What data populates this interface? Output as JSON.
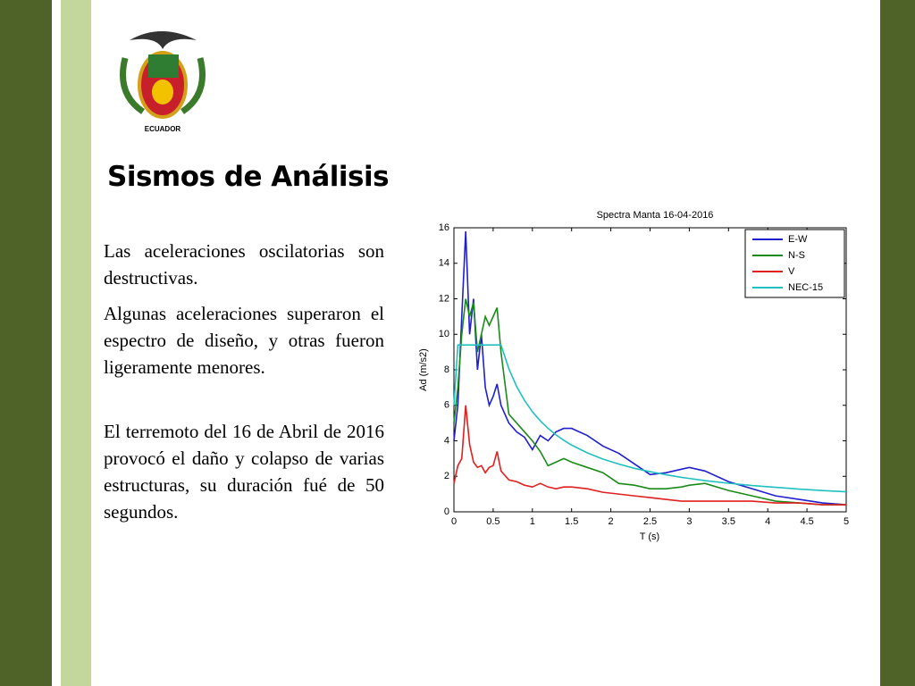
{
  "slide": {
    "title": "Sismos de Análisis",
    "logo_text": "ECUADOR",
    "paragraphs": [
      "Las aceleraciones oscilatorias son destructivas.",
      "Algunas aceleraciones superaron el espectro de diseño, y otras fueron ligeramente menores.",
      "El terremoto del 16 de Abril de 2016 provocó el daño y colapso de varias estructuras, su duración fué de 50 segundos."
    ]
  },
  "chart_data": {
    "type": "line",
    "title": "Spectra Manta 16-04-2016",
    "x_label": "T (s)",
    "y_label": "Ad (m/s2)",
    "x": [
      0,
      0.05,
      0.1,
      0.15,
      0.2,
      0.25,
      0.3,
      0.35,
      0.4,
      0.45,
      0.5,
      0.55,
      0.6,
      0.7,
      0.8,
      0.9,
      1.0,
      1.1,
      1.2,
      1.3,
      1.4,
      1.5,
      1.7,
      1.9,
      2.1,
      2.3,
      2.5,
      2.7,
      2.9,
      3.0,
      3.2,
      3.5,
      3.8,
      4.1,
      4.4,
      4.7,
      5.0
    ],
    "series": [
      {
        "name": "E-W",
        "color": "#1f1fd0",
        "values": [
          4,
          6,
          11,
          15.8,
          10,
          12,
          8,
          10,
          7,
          6,
          6.5,
          7.2,
          6,
          5,
          4.5,
          4.2,
          3.5,
          4.3,
          4,
          4.5,
          4.7,
          4.7,
          4.3,
          3.7,
          3.3,
          2.7,
          2.1,
          2.2,
          2.4,
          2.5,
          2.3,
          1.7,
          1.3,
          0.9,
          0.7,
          0.5,
          0.4
        ]
      },
      {
        "name": "N-S",
        "color": "#1a8a1a",
        "values": [
          5,
          7,
          10,
          12,
          11,
          11.8,
          9,
          10,
          11,
          10.5,
          11,
          11.5,
          9,
          5.5,
          5,
          4.5,
          4,
          3.4,
          2.6,
          2.8,
          3,
          2.8,
          2.5,
          2.2,
          1.6,
          1.5,
          1.3,
          1.3,
          1.4,
          1.5,
          1.6,
          1.2,
          0.9,
          0.6,
          0.5,
          0.4,
          0.4
        ]
      },
      {
        "name": "V",
        "color": "#e01f1f",
        "values": [
          1.6,
          2.6,
          3,
          6,
          3.8,
          2.8,
          2.5,
          2.6,
          2.2,
          2.5,
          2.6,
          3.4,
          2.3,
          1.8,
          1.7,
          1.5,
          1.4,
          1.6,
          1.4,
          1.3,
          1.4,
          1.4,
          1.3,
          1.1,
          1.0,
          0.9,
          0.8,
          0.7,
          0.6,
          0.6,
          0.6,
          0.6,
          0.6,
          0.5,
          0.5,
          0.4,
          0.4
        ]
      },
      {
        "name": "NEC-15",
        "color": "#20c0c0",
        "values": [
          6,
          9.4,
          9.4,
          9.4,
          9.4,
          9.4,
          9.4,
          9.4,
          9.4,
          9.4,
          9.4,
          9.4,
          9.4,
          8.06,
          7.05,
          6.27,
          5.64,
          5.13,
          4.7,
          4.34,
          4.03,
          3.76,
          3.32,
          2.97,
          2.69,
          2.45,
          2.26,
          2.09,
          1.94,
          1.88,
          1.76,
          1.61,
          1.48,
          1.38,
          1.28,
          1.2,
          1.13
        ]
      }
    ],
    "xlim": [
      0,
      5
    ],
    "ylim": [
      0,
      16
    ],
    "xticks": [
      0,
      0.5,
      1,
      1.5,
      2,
      2.5,
      3,
      3.5,
      4,
      4.5,
      5
    ],
    "yticks": [
      0,
      2,
      4,
      6,
      8,
      10,
      12,
      14,
      16
    ],
    "legend": "upper right"
  }
}
